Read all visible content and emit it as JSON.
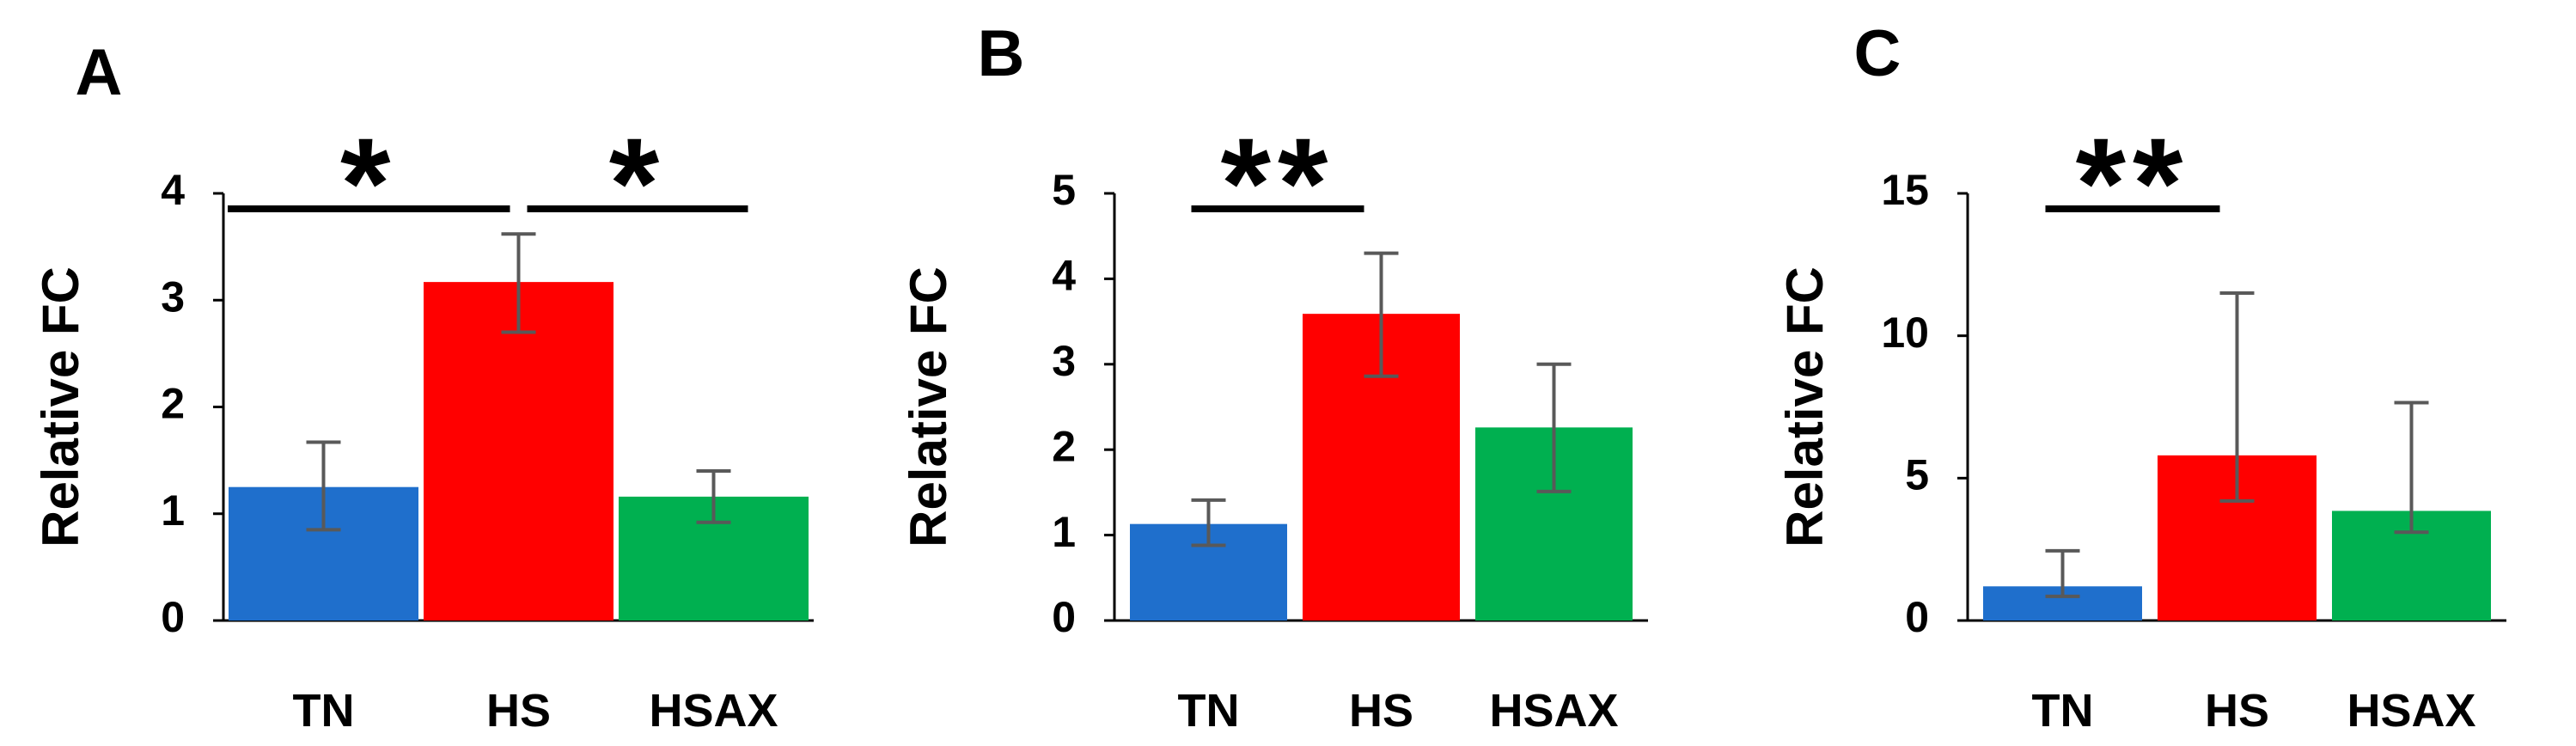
{
  "chart_data": [
    {
      "type": "bar",
      "panel": "A",
      "ylabel": "Relative FC",
      "ylim": [
        0,
        4
      ],
      "yticks": [
        "0",
        "1",
        "2",
        "3",
        "4"
      ],
      "categories": [
        "TN",
        "HS",
        "HSAX"
      ],
      "values": [
        1.25,
        3.17,
        1.16
      ],
      "error_upper": [
        0.42,
        0.45,
        0.24
      ],
      "error_lower": [
        0.4,
        0.47,
        0.24
      ],
      "colors": [
        "#1f6fcc",
        "#ff0000",
        "#00b050"
      ],
      "significance": [
        {
          "from": 0,
          "to": 1,
          "label": "*"
        },
        {
          "from": 1,
          "to": 2,
          "label": "*"
        }
      ]
    },
    {
      "type": "bar",
      "panel": "B",
      "ylabel": "Relative FC",
      "ylim": [
        0,
        5
      ],
      "yticks": [
        "0",
        "1",
        "2",
        "3",
        "4",
        "5"
      ],
      "categories": [
        "TN",
        "HS",
        "HSAX"
      ],
      "values": [
        1.13,
        3.59,
        2.26
      ],
      "error_upper": [
        0.28,
        0.71,
        0.74
      ],
      "error_lower": [
        0.25,
        0.73,
        0.75
      ],
      "colors": [
        "#1f6fcc",
        "#ff0000",
        "#00b050"
      ],
      "significance": [
        {
          "from": 0,
          "to": 1,
          "label": "**"
        }
      ]
    },
    {
      "type": "bar",
      "panel": "C",
      "ylabel": "Relative FC",
      "ylim": [
        0,
        15
      ],
      "yticks": [
        "0",
        "5",
        "10",
        "15"
      ],
      "categories": [
        "TN",
        "HS",
        "HSAX"
      ],
      "values": [
        1.2,
        5.8,
        3.85
      ],
      "error_upper": [
        1.25,
        5.7,
        3.8
      ],
      "error_lower": [
        0.35,
        1.6,
        0.75
      ],
      "colors": [
        "#1f6fcc",
        "#ff0000",
        "#00b050"
      ],
      "significance": [
        {
          "from": 0,
          "to": 1,
          "label": "**"
        }
      ]
    }
  ]
}
